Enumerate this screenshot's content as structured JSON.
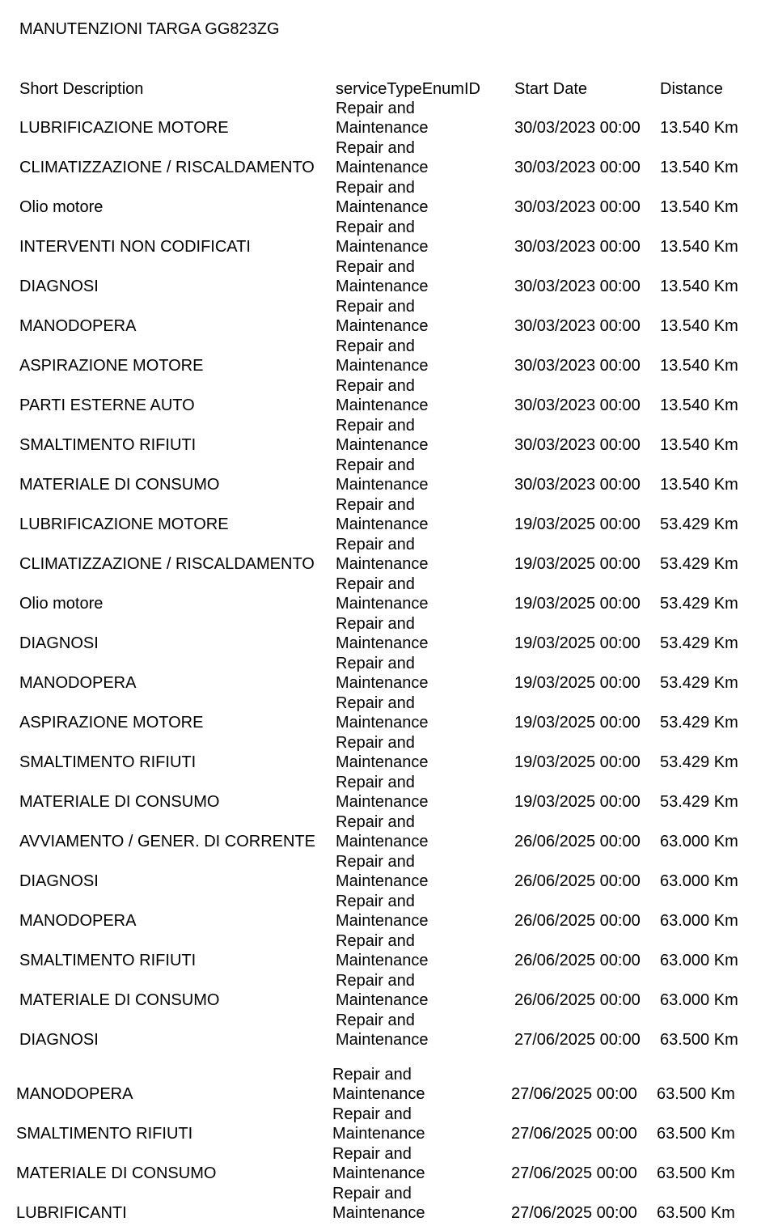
{
  "document": {
    "title": "MANUTENZIONI TARGA GG823ZG",
    "columns": [
      "Short Description",
      "serviceTypeEnumID",
      "Start Date",
      "Distance"
    ],
    "service_type_line1": "Repair and",
    "service_type_line2": "Maintenance",
    "rows": [
      {
        "desc": "LUBRIFICAZIONE MOTORE",
        "date": "30/03/2023 00:00",
        "distance": "13.540 Km"
      },
      {
        "desc": "CLIMATIZZAZIONE / RISCALDAMENTO",
        "date": "30/03/2023 00:00",
        "distance": "13.540 Km"
      },
      {
        "desc": "Olio motore",
        "date": "30/03/2023 00:00",
        "distance": "13.540 Km"
      },
      {
        "desc": "INTERVENTI NON CODIFICATI",
        "date": "30/03/2023 00:00",
        "distance": "13.540 Km"
      },
      {
        "desc": "DIAGNOSI",
        "date": "30/03/2023 00:00",
        "distance": "13.540 Km"
      },
      {
        "desc": "MANODOPERA",
        "date": "30/03/2023 00:00",
        "distance": "13.540 Km"
      },
      {
        "desc": "ASPIRAZIONE MOTORE",
        "date": "30/03/2023 00:00",
        "distance": "13.540 Km"
      },
      {
        "desc": "PARTI ESTERNE AUTO",
        "date": "30/03/2023 00:00",
        "distance": "13.540 Km"
      },
      {
        "desc": "SMALTIMENTO RIFIUTI",
        "date": "30/03/2023 00:00",
        "distance": "13.540 Km"
      },
      {
        "desc": "MATERIALE DI CONSUMO",
        "date": "30/03/2023 00:00",
        "distance": "13.540 Km"
      },
      {
        "desc": "LUBRIFICAZIONE MOTORE",
        "date": "19/03/2025 00:00",
        "distance": "53.429 Km"
      },
      {
        "desc": "CLIMATIZZAZIONE / RISCALDAMENTO",
        "date": "19/03/2025 00:00",
        "distance": "53.429 Km"
      },
      {
        "desc": "Olio motore",
        "date": "19/03/2025 00:00",
        "distance": "53.429 Km"
      },
      {
        "desc": "DIAGNOSI",
        "date": "19/03/2025 00:00",
        "distance": "53.429 Km"
      },
      {
        "desc": "MANODOPERA",
        "date": "19/03/2025 00:00",
        "distance": "53.429 Km"
      },
      {
        "desc": "ASPIRAZIONE MOTORE",
        "date": "19/03/2025 00:00",
        "distance": "53.429 Km"
      },
      {
        "desc": "SMALTIMENTO RIFIUTI",
        "date": "19/03/2025 00:00",
        "distance": "53.429 Km"
      },
      {
        "desc": "MATERIALE DI CONSUMO",
        "date": "19/03/2025 00:00",
        "distance": "53.429 Km"
      },
      {
        "desc": "AVVIAMENTO / GENER. DI CORRENTE",
        "date": "26/06/2025 00:00",
        "distance": "63.000 Km"
      },
      {
        "desc": "DIAGNOSI",
        "date": "26/06/2025 00:00",
        "distance": "63.000 Km"
      },
      {
        "desc": "MANODOPERA",
        "date": "26/06/2025 00:00",
        "distance": "63.000 Km"
      },
      {
        "desc": "SMALTIMENTO RIFIUTI",
        "date": "26/06/2025 00:00",
        "distance": "63.000 Km"
      },
      {
        "desc": "MATERIALE DI CONSUMO",
        "date": "26/06/2025 00:00",
        "distance": "63.000 Km"
      },
      {
        "desc": "DIAGNOSI",
        "date": "27/06/2025 00:00",
        "distance": "63.500 Km"
      }
    ],
    "rows_page2": [
      {
        "desc": "MANODOPERA",
        "date": "27/06/2025 00:00",
        "distance": "63.500 Km"
      },
      {
        "desc": "SMALTIMENTO RIFIUTI",
        "date": "27/06/2025 00:00",
        "distance": "63.500 Km"
      },
      {
        "desc": "MATERIALE DI CONSUMO",
        "date": "27/06/2025 00:00",
        "distance": "63.500 Km"
      },
      {
        "desc": "LUBRIFICANTI",
        "date": "27/06/2025 00:00",
        "distance": "63.500 Km"
      }
    ]
  }
}
